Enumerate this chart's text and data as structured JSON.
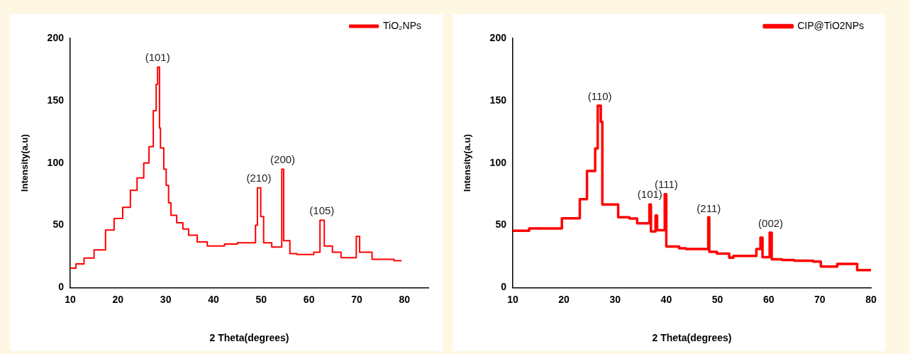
{
  "chart_data": [
    {
      "type": "step",
      "xlabel": "2 Theta(degrees)",
      "ylabel": "Intensity(a.u)",
      "xlim": [
        10,
        85
      ],
      "xticks": [
        10,
        20,
        30,
        40,
        50,
        60,
        70,
        80
      ],
      "ylim": [
        0,
        200
      ],
      "yticks": [
        0,
        50,
        100,
        150,
        200
      ],
      "grid": false,
      "legend": "top right",
      "marker": "none",
      "line_style": "solid",
      "series": [
        {
          "name": "TiO₂NPs",
          "color": "#ff0000",
          "x": [
            10,
            11.2,
            12.9,
            15.0,
            17.4,
            19.2,
            21.0,
            22.6,
            24.0,
            25.4,
            26.5,
            27.4,
            28.0,
            28.3,
            28.7,
            28.9,
            29.6,
            30.1,
            30.6,
            31.1,
            32.3,
            33.6,
            34.8,
            36.6,
            38.7,
            42.3,
            45.0,
            48.8,
            49.2,
            49.9,
            50.5,
            52.2,
            54.3,
            54.7,
            56.0,
            57.5,
            61.0,
            62.3,
            63.2,
            64.9,
            66.7,
            69.9,
            70.6,
            73.2,
            77.8,
            79.4
          ],
          "values": [
            15.6,
            19,
            23.7,
            30.2,
            46.2,
            55.4,
            64.4,
            78,
            88,
            100,
            113,
            142,
            163,
            177,
            128,
            112,
            95,
            82,
            68,
            58,
            52,
            47,
            42,
            36.6,
            33.4,
            35,
            36,
            50,
            80,
            57,
            36,
            32.5,
            95,
            37.7,
            27.2,
            26.5,
            28.4,
            54,
            33.4,
            28.4,
            24,
            41,
            28.4,
            22.7,
            21.6,
            21.6
          ]
        }
      ],
      "annotations": [
        {
          "text": "(101)",
          "x": 28.3,
          "y": 177
        },
        {
          "text": "(210)",
          "x": 49.5,
          "y": 80
        },
        {
          "text": "(200)",
          "x": 54.5,
          "y": 95
        },
        {
          "text": "(105)",
          "x": 62.7,
          "y": 54
        }
      ]
    },
    {
      "type": "step",
      "xlabel": "2 Theta(degrees)",
      "ylabel": "Intensity(a.u)",
      "xlim": [
        10,
        80
      ],
      "xticks": [
        10,
        20,
        30,
        40,
        50,
        60,
        70,
        80
      ],
      "ylim": [
        0,
        200
      ],
      "yticks": [
        0,
        50,
        100,
        150,
        200
      ],
      "grid": false,
      "legend": "top right",
      "marker": "none",
      "line_style": "solid",
      "series": [
        {
          "name": "CIP@TiO2NPs",
          "color": "#ff0000",
          "x": [
            10,
            13.2,
            19.6,
            23.1,
            24.5,
            26.1,
            26.6,
            27.2,
            27.5,
            30.6,
            32.8,
            34.3,
            36.7,
            37.0,
            37.9,
            38.2,
            39.7,
            40.0,
            42.5,
            43.8,
            48.2,
            48.4,
            49.9,
            52.3,
            53.1,
            57.6,
            58.4,
            58.8,
            60.2,
            60.6,
            62.6,
            65.0,
            68.7,
            70.2,
            73.4,
            77.3,
            80
          ],
          "values": [
            45.6,
            47.5,
            55.6,
            71,
            93.5,
            111.7,
            146,
            133,
            66.7,
            56.5,
            55.4,
            51.6,
            66.7,
            45,
            57.8,
            46,
            75,
            33,
            31.5,
            31,
            56.5,
            28.7,
            27.2,
            24,
            25.4,
            31,
            40,
            24.4,
            44,
            22.7,
            22.2,
            21.6,
            20.8,
            16.9,
            19,
            14.1,
            14.1
          ]
        }
      ],
      "annotations": [
        {
          "text": "(110)",
          "x": 27,
          "y": 146
        },
        {
          "text": "(101)",
          "x": 36.8,
          "y": 67
        },
        {
          "text": "(111)",
          "x": 40,
          "y": 75
        },
        {
          "text": "(211)",
          "x": 48.3,
          "y": 56
        },
        {
          "text": "(002)",
          "x": 60.4,
          "y": 44
        }
      ]
    }
  ]
}
